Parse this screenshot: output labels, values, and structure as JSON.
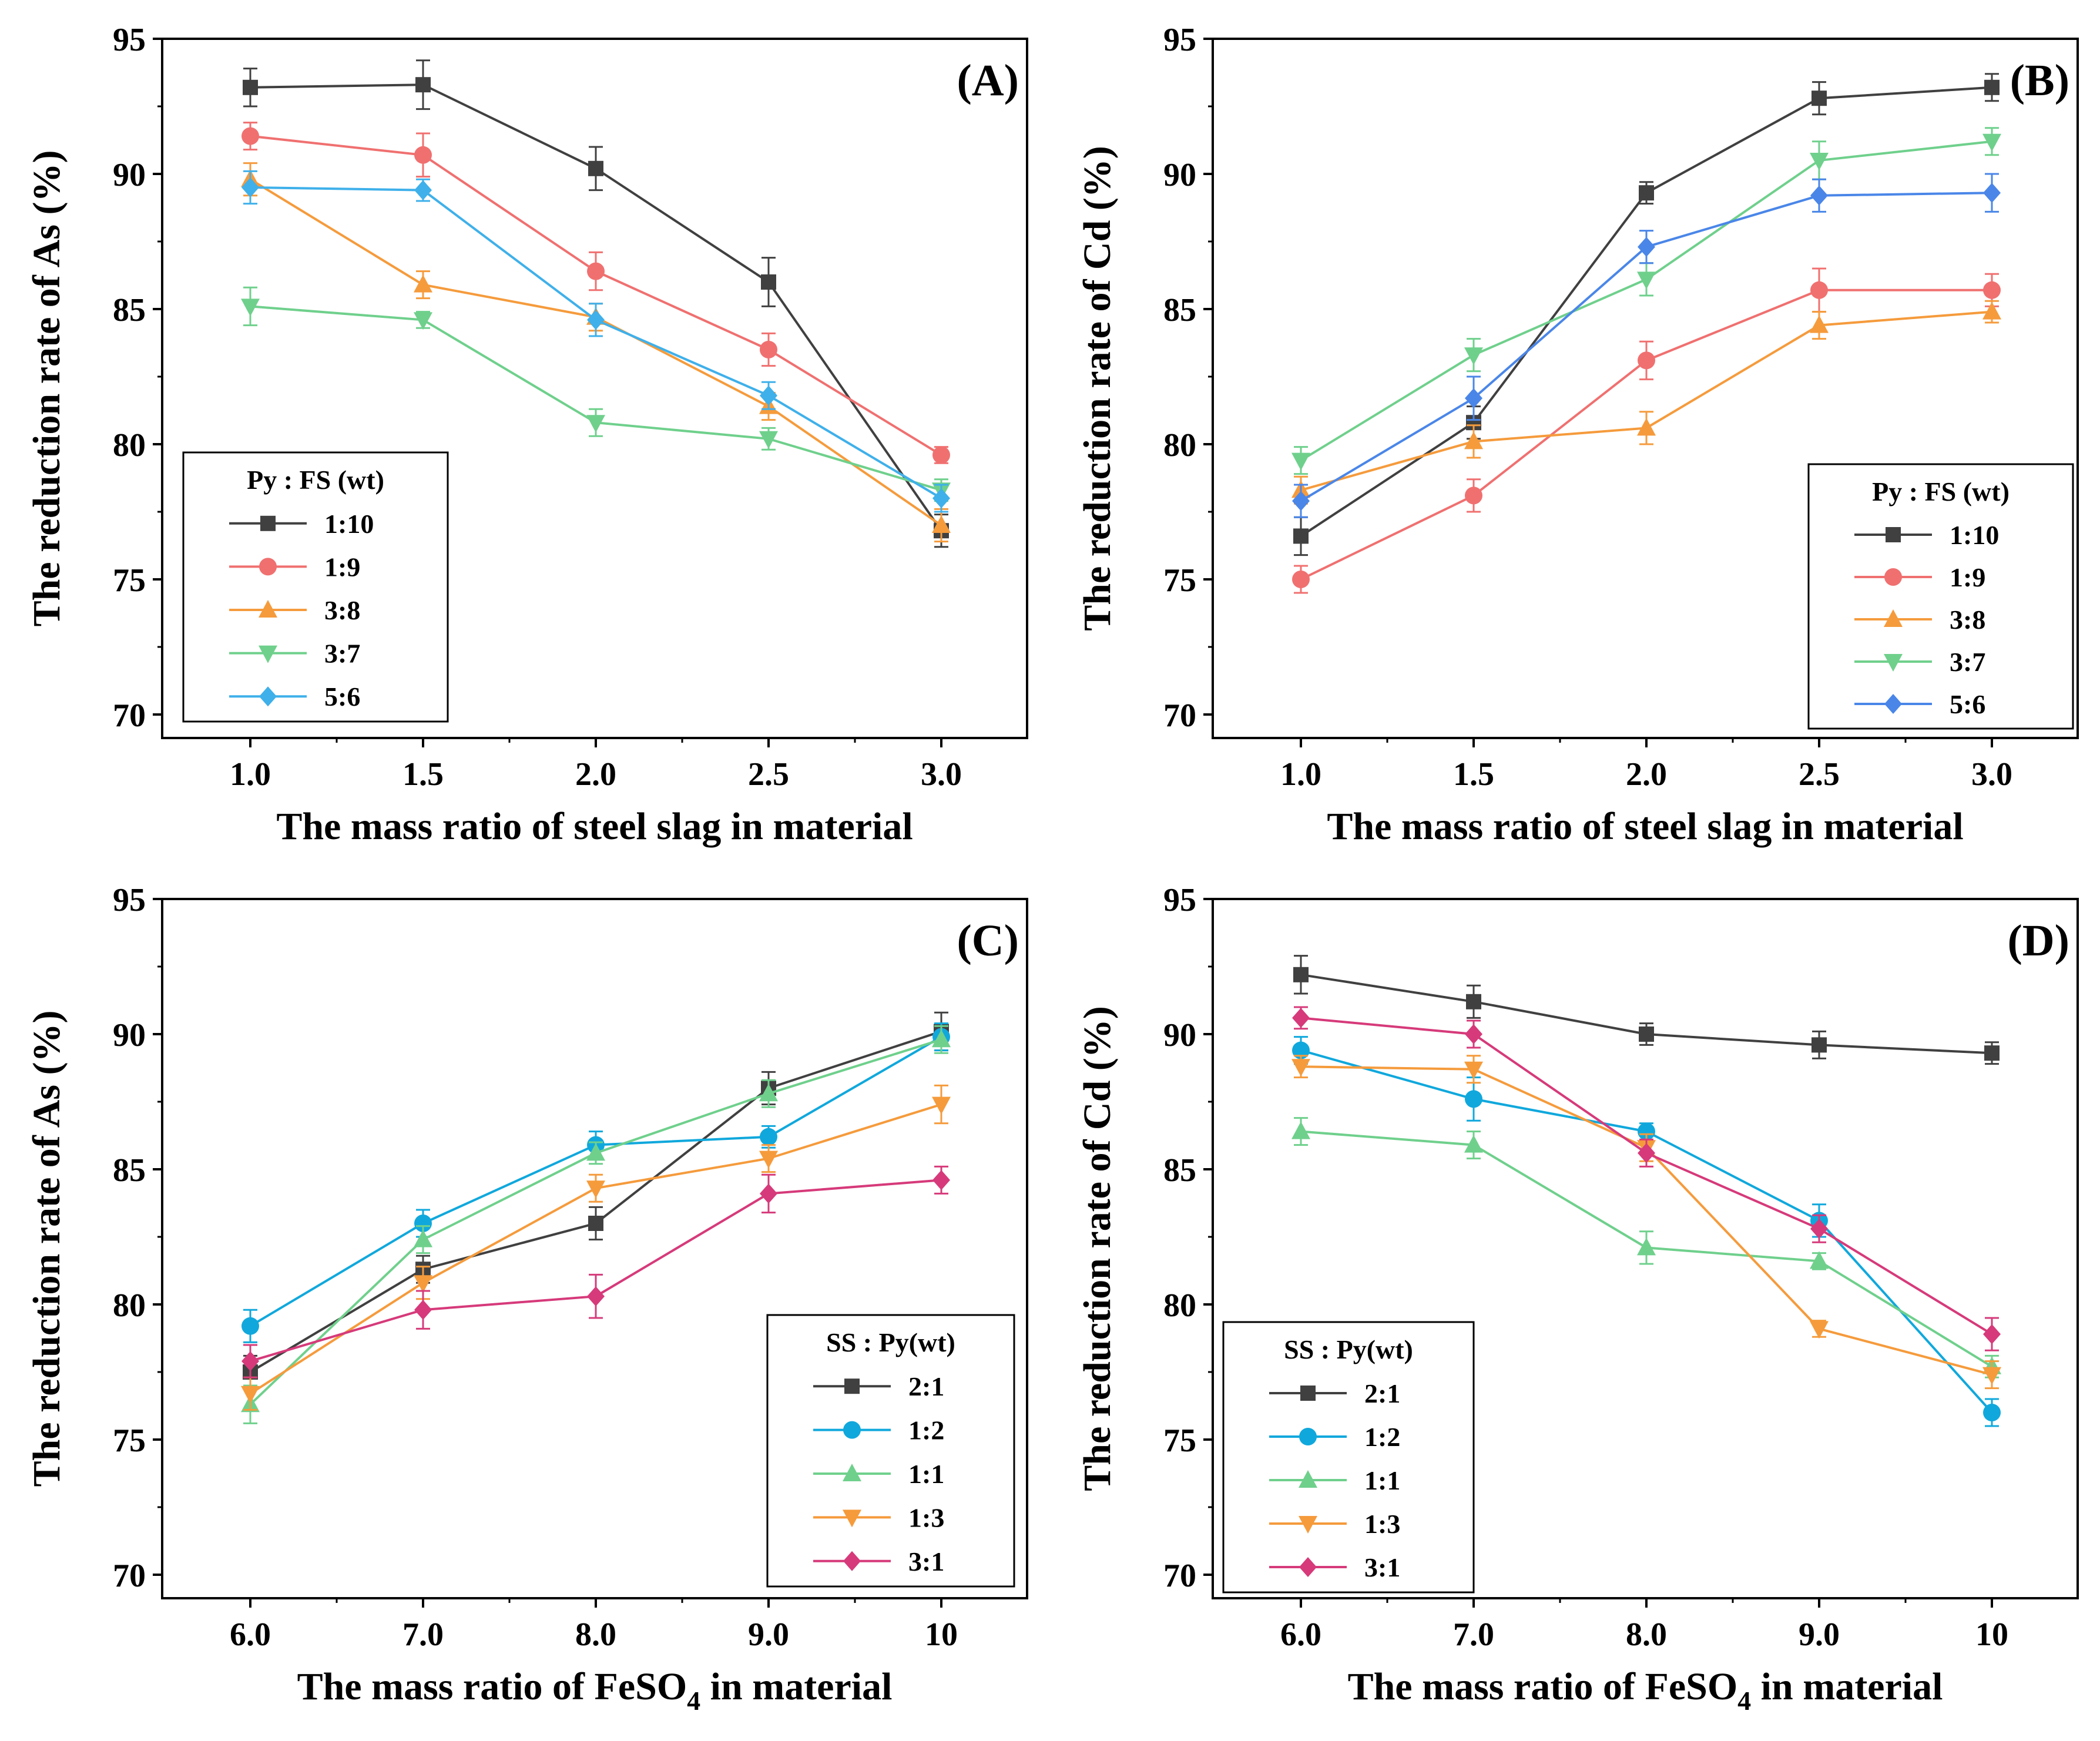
{
  "chart_data": [
    {
      "type": "line",
      "panel": "(A)",
      "xlabel": "The mass ratio of steel slag in material",
      "ylabel": "The reduction rate of As (%)",
      "categories": [
        "1.0",
        "1.5",
        "2.0",
        "2.5",
        "3.0"
      ],
      "ylim": [
        70,
        95
      ],
      "yticks": [
        "70",
        "75",
        "80",
        "85",
        "90",
        "95"
      ],
      "legend_title": "Py : FS (wt)",
      "legend_position": "bottom-left",
      "series": [
        {
          "name": "1:10",
          "color": "#404040",
          "marker": "square",
          "values": [
            93.2,
            93.3,
            90.2,
            86.0,
            76.8
          ],
          "errors": [
            0.7,
            0.9,
            0.8,
            0.9,
            0.6
          ]
        },
        {
          "name": "1:9",
          "color": "#f07070",
          "marker": "circle",
          "values": [
            91.4,
            90.7,
            86.4,
            83.5,
            79.6
          ],
          "errors": [
            0.5,
            0.8,
            0.7,
            0.6,
            0.3
          ]
        },
        {
          "name": "3:8",
          "color": "#f59b3c",
          "marker": "triangle-up",
          "values": [
            89.8,
            85.9,
            84.7,
            81.4,
            77.0
          ],
          "errors": [
            0.6,
            0.5,
            0.5,
            0.5,
            0.6
          ]
        },
        {
          "name": "3:7",
          "color": "#6fd08c",
          "marker": "triangle-down",
          "values": [
            85.1,
            84.6,
            80.8,
            80.2,
            78.3
          ],
          "errors": [
            0.7,
            0.3,
            0.5,
            0.4,
            0.4
          ]
        },
        {
          "name": "5:6",
          "color": "#3fb0ea",
          "marker": "diamond",
          "values": [
            89.5,
            89.4,
            84.6,
            81.8,
            78.0
          ],
          "errors": [
            0.6,
            0.4,
            0.6,
            0.5,
            0.5
          ]
        }
      ]
    },
    {
      "type": "line",
      "panel": "(B)",
      "xlabel": "The mass ratio of steel slag in material",
      "ylabel": "The reduction rate of Cd (%)",
      "categories": [
        "1.0",
        "1.5",
        "2.0",
        "2.5",
        "3.0"
      ],
      "ylim": [
        70,
        95
      ],
      "yticks": [
        "70",
        "75",
        "80",
        "85",
        "90",
        "95"
      ],
      "legend_title": "Py : FS (wt)",
      "legend_position": "bottom-right",
      "series": [
        {
          "name": "1:10",
          "color": "#404040",
          "marker": "square",
          "values": [
            76.6,
            80.8,
            89.3,
            92.8,
            93.2
          ],
          "errors": [
            0.7,
            0.6,
            0.4,
            0.6,
            0.5
          ]
        },
        {
          "name": "1:9",
          "color": "#f07070",
          "marker": "circle",
          "values": [
            75.0,
            78.1,
            83.1,
            85.7,
            85.7
          ],
          "errors": [
            0.5,
            0.6,
            0.7,
            0.8,
            0.6
          ]
        },
        {
          "name": "3:8",
          "color": "#f59b3c",
          "marker": "triangle-up",
          "values": [
            78.3,
            80.1,
            80.6,
            84.4,
            84.9
          ],
          "errors": [
            0.5,
            0.6,
            0.6,
            0.5,
            0.4
          ]
        },
        {
          "name": "3:7",
          "color": "#6fd08c",
          "marker": "triangle-down",
          "values": [
            79.4,
            83.3,
            86.1,
            90.5,
            91.2
          ],
          "errors": [
            0.5,
            0.6,
            0.6,
            0.7,
            0.5
          ]
        },
        {
          "name": "5:6",
          "color": "#4a86e8",
          "marker": "diamond",
          "values": [
            77.9,
            81.7,
            87.3,
            89.2,
            89.3
          ],
          "errors": [
            0.6,
            0.8,
            0.6,
            0.6,
            0.7
          ]
        }
      ]
    },
    {
      "type": "line",
      "panel": "(C)",
      "xlabel": "The mass ratio of FeSO",
      "xlabel_sub": "4",
      "xlabel_tail": " in material",
      "ylabel": "The reduction rate of As (%)",
      "categories": [
        "6.0",
        "7.0",
        "8.0",
        "9.0",
        "10"
      ],
      "ylim": [
        70,
        95
      ],
      "yticks": [
        "70",
        "75",
        "80",
        "85",
        "90",
        "95"
      ],
      "legend_title": "SS : Py(wt)",
      "legend_position": "bottom-right",
      "series": [
        {
          "name": "2:1",
          "color": "#404040",
          "marker": "square",
          "values": [
            77.5,
            81.3,
            83.0,
            88.0,
            90.1
          ],
          "errors": [
            0.6,
            0.5,
            0.6,
            0.6,
            0.7
          ]
        },
        {
          "name": "1:2",
          "color": "#10a8dc",
          "marker": "circle",
          "values": [
            79.2,
            83.0,
            85.9,
            86.2,
            89.9
          ],
          "errors": [
            0.6,
            0.5,
            0.5,
            0.4,
            0.5
          ]
        },
        {
          "name": "1:1",
          "color": "#6fd08c",
          "marker": "triangle-up",
          "values": [
            76.3,
            82.4,
            85.6,
            87.8,
            89.8
          ],
          "errors": [
            0.7,
            0.5,
            0.4,
            0.5,
            0.5
          ]
        },
        {
          "name": "1:3",
          "color": "#f59b3c",
          "marker": "triangle-down",
          "values": [
            76.7,
            80.8,
            84.3,
            85.4,
            87.4
          ],
          "errors": [
            0.6,
            0.6,
            0.5,
            0.5,
            0.7
          ]
        },
        {
          "name": "3:1",
          "color": "#d63a7a",
          "marker": "diamond",
          "values": [
            77.9,
            79.8,
            80.3,
            84.1,
            84.6
          ],
          "errors": [
            0.6,
            0.7,
            0.8,
            0.7,
            0.5
          ]
        }
      ]
    },
    {
      "type": "line",
      "panel": "(D)",
      "xlabel": "The mass ratio of FeSO",
      "xlabel_sub": "4",
      "xlabel_tail": " in material",
      "ylabel": "The reduction rate of Cd (%)",
      "categories": [
        "6.0",
        "7.0",
        "8.0",
        "9.0",
        "10"
      ],
      "ylim": [
        70,
        95
      ],
      "yticks": [
        "70",
        "75",
        "80",
        "85",
        "90",
        "95"
      ],
      "legend_title": "SS : Py(wt)",
      "legend_position": "bottom-left",
      "series": [
        {
          "name": "2:1",
          "color": "#404040",
          "marker": "square",
          "values": [
            92.2,
            91.2,
            90.0,
            89.6,
            89.3
          ],
          "errors": [
            0.7,
            0.6,
            0.4,
            0.5,
            0.4
          ]
        },
        {
          "name": "1:2",
          "color": "#10a8dc",
          "marker": "circle",
          "values": [
            89.4,
            87.6,
            86.4,
            83.1,
            76.0
          ],
          "errors": [
            0.5,
            0.8,
            0.3,
            0.6,
            0.5
          ]
        },
        {
          "name": "1:1",
          "color": "#6fd08c",
          "marker": "triangle-up",
          "values": [
            86.4,
            85.9,
            82.1,
            81.6,
            77.7
          ],
          "errors": [
            0.5,
            0.5,
            0.6,
            0.3,
            0.4
          ]
        },
        {
          "name": "1:3",
          "color": "#f59b3c",
          "marker": "triangle-down",
          "values": [
            88.8,
            88.7,
            85.8,
            79.1,
            77.4
          ],
          "errors": [
            0.4,
            0.5,
            0.5,
            0.3,
            0.5
          ]
        },
        {
          "name": "3:1",
          "color": "#d63a7a",
          "marker": "diamond",
          "values": [
            90.6,
            90.0,
            85.6,
            82.8,
            78.9
          ],
          "errors": [
            0.4,
            0.5,
            0.5,
            0.5,
            0.6
          ]
        }
      ]
    }
  ]
}
